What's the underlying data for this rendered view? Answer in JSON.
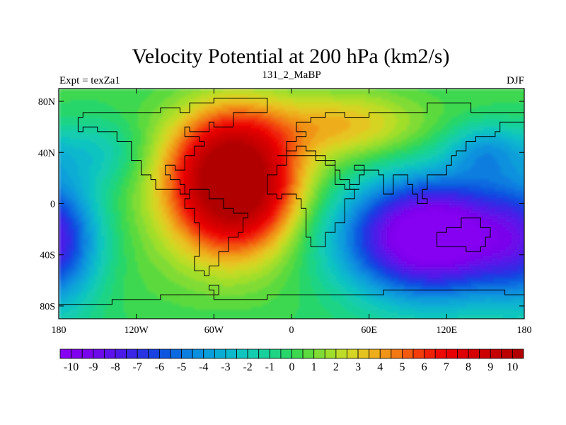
{
  "chart_data": {
    "type": "heatmap",
    "title": "Velocity Potential at 200 hPa (km2/s)",
    "subtitle_left": "Expt = texZa1",
    "subtitle_center": "131_2_MaBP",
    "subtitle_right": "DJF",
    "x_ticks": [
      {
        "value": -180,
        "label": "180"
      },
      {
        "value": -120,
        "label": "120W"
      },
      {
        "value": -60,
        "label": "60W"
      },
      {
        "value": 0,
        "label": "0"
      },
      {
        "value": 60,
        "label": "60E"
      },
      {
        "value": 120,
        "label": "120E"
      },
      {
        "value": 180,
        "label": "180"
      }
    ],
    "y_ticks": [
      {
        "value": 80,
        "label": "80N"
      },
      {
        "value": 40,
        "label": "40N"
      },
      {
        "value": 0,
        "label": "0"
      },
      {
        "value": -40,
        "label": "40S"
      },
      {
        "value": -80,
        "label": "80S"
      }
    ],
    "xlim": [
      -180,
      180
    ],
    "ylim": [
      -90,
      90
    ],
    "colorbar": {
      "min": -10.5,
      "max": 10.5,
      "step": 0.5,
      "labels": [
        "-10",
        "-9",
        "-8",
        "-7",
        "-6",
        "-5",
        "-4",
        "-3",
        "-2",
        "-1",
        "0",
        "1",
        "2",
        "3",
        "4",
        "5",
        "6",
        "7",
        "8",
        "9",
        "10"
      ],
      "label_values": [
        -10,
        -9,
        -8,
        -7,
        -6,
        -5,
        -4,
        -3,
        -2,
        -1,
        0,
        1,
        2,
        3,
        4,
        5,
        6,
        7,
        8,
        9,
        10
      ],
      "colors": [
        "#8600f2",
        "#8100ee",
        "#7a04ec",
        "#6c0aea",
        "#5c12ea",
        "#4b1ae8",
        "#3a26e6",
        "#2833e4",
        "#1842e2",
        "#0e56e0",
        "#0c6ae0",
        "#0b7ee0",
        "#0a90de",
        "#0a9fda",
        "#0aacd4",
        "#0cb8cc",
        "#10c4c0",
        "#14ccb0",
        "#18d09c",
        "#1ed484",
        "#28d66a",
        "#3cd850",
        "#5cda3e",
        "#80dc34",
        "#a0de2c",
        "#bedc28",
        "#d6d424",
        "#e6c420",
        "#eeae1c",
        "#f09418",
        "#f27814",
        "#f25a10",
        "#f23c0c",
        "#f02008",
        "#ee0a04",
        "#e80000",
        "#de0000",
        "#d40000",
        "#cc0000",
        "#c40000",
        "#bc0000",
        "#b00000"
      ]
    },
    "field_centers": [
      {
        "name": "divergence-max-americas-atlantic",
        "lon": -45,
        "lat": 18,
        "value": 10.2
      },
      {
        "name": "convergence-min-indian-pacific",
        "lon": 110,
        "lat": -25,
        "value": -10.4
      },
      {
        "name": "convergence-min-east-pacific",
        "lon": -178,
        "lat": -35,
        "value": -9.5
      }
    ],
    "coastline": "continents outline (block-style land mask)"
  }
}
